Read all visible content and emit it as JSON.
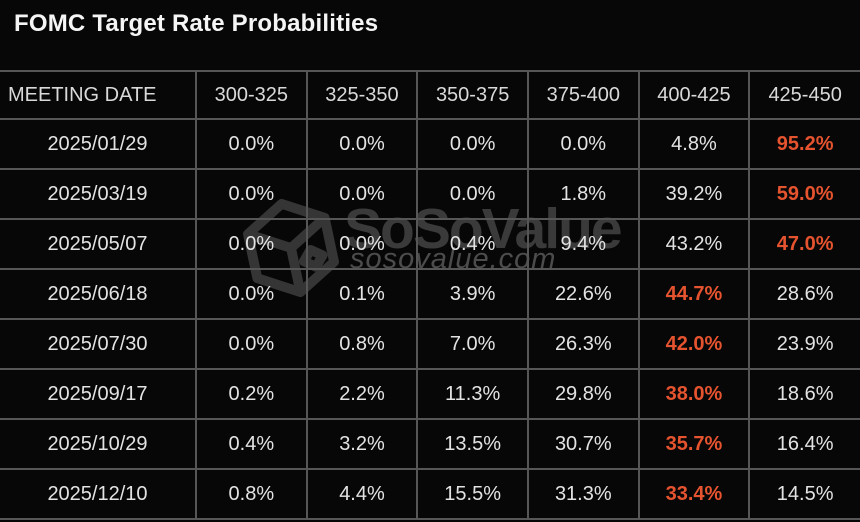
{
  "title": "FOMC Target Rate Probabilities",
  "colors": {
    "background": "#070707",
    "grid_line": "#565656",
    "cell_text": "#e3e3e3",
    "header_text": "#d9d9d9",
    "title_text": "#f5f5f5",
    "highlight_text": "#e5532f",
    "watermark_brand": "#3a3a3a",
    "watermark_domain": "#4c4c4c"
  },
  "watermark": {
    "logo_icon": "cube-logo-icon",
    "brand": "SoSoValue",
    "domain": "sosovalue.com"
  },
  "chart_data": {
    "type": "table",
    "title": "FOMC Target Rate Probabilities",
    "columns": [
      "MEETING DATE",
      "300-325",
      "325-350",
      "350-375",
      "375-400",
      "400-425",
      "425-450"
    ],
    "rows": [
      {
        "date": "2025/01/29",
        "values": [
          "0.0%",
          "0.0%",
          "0.0%",
          "0.0%",
          "4.8%",
          "95.2%"
        ],
        "highlight_index": 5
      },
      {
        "date": "2025/03/19",
        "values": [
          "0.0%",
          "0.0%",
          "0.0%",
          "1.8%",
          "39.2%",
          "59.0%"
        ],
        "highlight_index": 5
      },
      {
        "date": "2025/05/07",
        "values": [
          "0.0%",
          "0.0%",
          "0.4%",
          "9.4%",
          "43.2%",
          "47.0%"
        ],
        "highlight_index": 5
      },
      {
        "date": "2025/06/18",
        "values": [
          "0.0%",
          "0.1%",
          "3.9%",
          "22.6%",
          "44.7%",
          "28.6%"
        ],
        "highlight_index": 4
      },
      {
        "date": "2025/07/30",
        "values": [
          "0.0%",
          "0.8%",
          "7.0%",
          "26.3%",
          "42.0%",
          "23.9%"
        ],
        "highlight_index": 4
      },
      {
        "date": "2025/09/17",
        "values": [
          "0.2%",
          "2.2%",
          "11.3%",
          "29.8%",
          "38.0%",
          "18.6%"
        ],
        "highlight_index": 4
      },
      {
        "date": "2025/10/29",
        "values": [
          "0.4%",
          "3.2%",
          "13.5%",
          "30.7%",
          "35.7%",
          "16.4%"
        ],
        "highlight_index": 4
      },
      {
        "date": "2025/12/10",
        "values": [
          "0.8%",
          "4.4%",
          "15.5%",
          "31.3%",
          "33.4%",
          "14.5%"
        ],
        "highlight_index": 4
      }
    ]
  }
}
